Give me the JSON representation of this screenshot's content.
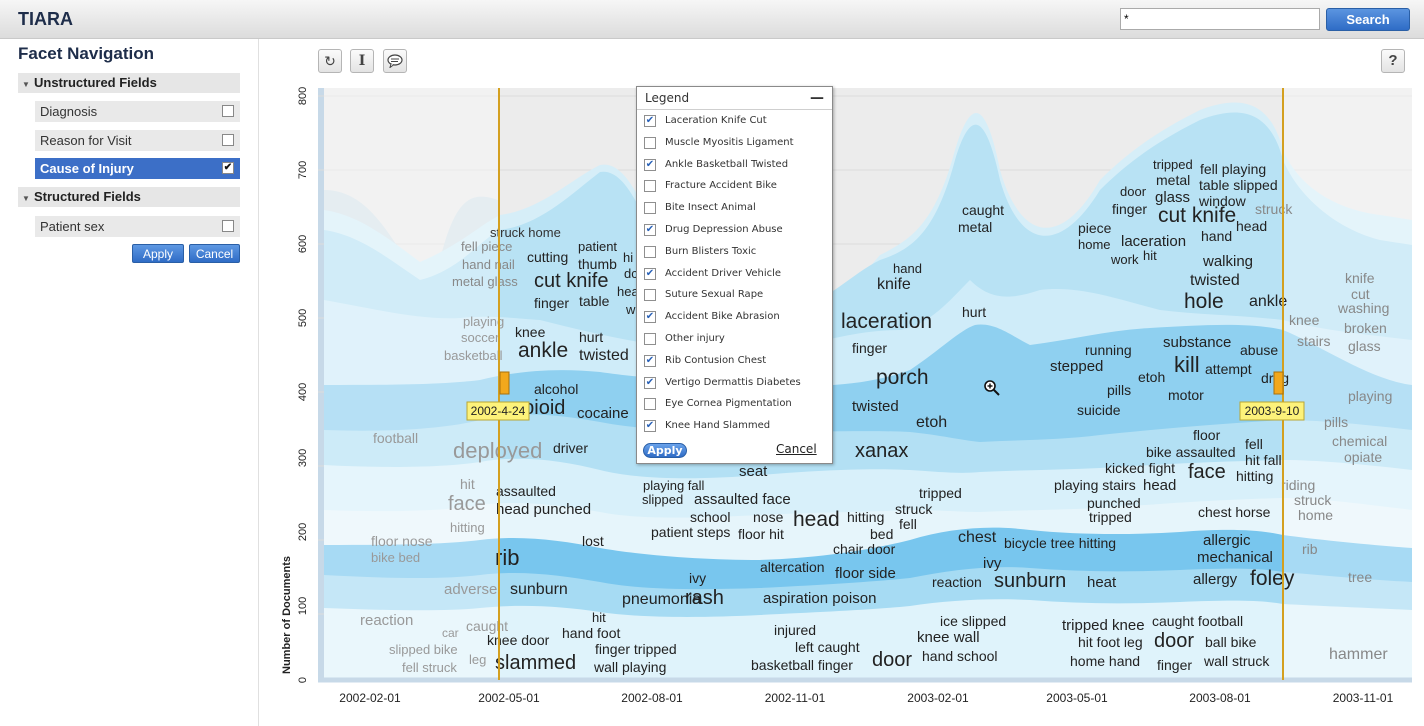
{
  "app": {
    "title": "TIARA"
  },
  "search": {
    "value": "*",
    "button": "Search"
  },
  "sidebar": {
    "title": "Facet Navigation",
    "unstructured": {
      "label": "Unstructured Fields",
      "items": [
        {
          "label": "Diagnosis",
          "checked": false
        },
        {
          "label": "Reason for Visit",
          "checked": false
        },
        {
          "label": "Cause of Injury",
          "checked": true
        }
      ]
    },
    "structured": {
      "label": "Structured Fields",
      "items": [
        {
          "label": "Patient sex",
          "checked": false
        }
      ]
    },
    "apply": "Apply",
    "cancel": "Cancel"
  },
  "toolbar": {
    "refresh_icon": "refresh-icon",
    "text_cursor_icon": "text-cursor-icon",
    "comment_icon": "comment-icon",
    "help": "?"
  },
  "legend": {
    "title": "Legend",
    "minimize": "—",
    "items": [
      {
        "label": "Laceration Knife Cut",
        "checked": true
      },
      {
        "label": "Muscle Myositis Ligament",
        "checked": false
      },
      {
        "label": "Ankle Basketball Twisted",
        "checked": true
      },
      {
        "label": "Fracture Accident Bike",
        "checked": false
      },
      {
        "label": "Bite Insect Animal",
        "checked": false
      },
      {
        "label": "Drug Depression Abuse",
        "checked": true
      },
      {
        "label": "Burn Blisters Toxic",
        "checked": false
      },
      {
        "label": "Accident Driver Vehicle",
        "checked": true
      },
      {
        "label": "Suture Sexual Rape",
        "checked": false
      },
      {
        "label": "Accident Bike Abrasion",
        "checked": true
      },
      {
        "label": "Other injury",
        "checked": false
      },
      {
        "label": "Rib Contusion Chest",
        "checked": true
      },
      {
        "label": "Vertigo Dermattis Diabetes",
        "checked": true
      },
      {
        "label": "Eye Cornea Pigmentation",
        "checked": false
      },
      {
        "label": "Knee Hand Slammed",
        "checked": true
      }
    ],
    "apply": "Apply",
    "cancel": "Cancel"
  },
  "chart_data": {
    "type": "area",
    "subtype": "stacked streamgraph with keyword labels",
    "ylabel": "Number of Documents",
    "xlabel": "",
    "ylim": [
      0,
      800
    ],
    "yticks": [
      0,
      100,
      200,
      300,
      400,
      500,
      600,
      700,
      800
    ],
    "xticks": [
      "2002-02-01",
      "2002-05-01",
      "2002-08-01",
      "2002-11-01",
      "2003-02-01",
      "2003-05-01",
      "2003-08-01",
      "2003-11-01"
    ],
    "range_markers": [
      {
        "label": "2002-4-24"
      },
      {
        "label": "2003-9-10"
      }
    ],
    "keywords": [
      "struck home",
      "fell piece",
      "hand nail",
      "cutting",
      "metal glass",
      "cut knife",
      "patient",
      "thumb",
      "finger",
      "table",
      "hi",
      "dc",
      "hea",
      "w",
      "playing",
      "soccer",
      "basketball",
      "knee",
      "ankle",
      "hurt",
      "twisted",
      "alcohol",
      "opioid",
      "cocaine",
      "football",
      "deployed",
      "driver",
      "hit",
      "face",
      "assaulted",
      "head punched",
      "hitting",
      "floor nose",
      "bike bed",
      "rib",
      "lost",
      "adverse",
      "sunburn",
      "reaction",
      "car",
      "caught",
      "knee door",
      "slipped bike",
      "leg",
      "fell struck",
      "slammed",
      "hit",
      "hand foot",
      "finger tripped",
      "wall playing",
      "pneumonia",
      "rash",
      "aspiration poison",
      "ivy",
      "seat",
      "playing fall",
      "slipped",
      "assaulted face",
      "school",
      "nose",
      "head",
      "hitting",
      "bed",
      "patient steps",
      "floor hit",
      "chair door",
      "altercation",
      "floor side",
      "injured",
      "left caught",
      "basketball finger",
      "door",
      "hand",
      "knife",
      "laceration",
      "finger",
      "porch",
      "twisted",
      "etoh",
      "xanax",
      "hurt",
      "caught",
      "metal",
      "tripped",
      "struck",
      "fell",
      "chest",
      "bicycle tree hitting",
      "ivy",
      "reaction",
      "sunburn",
      "heat",
      "ice slipped",
      "knee wall",
      "hand school",
      "running",
      "stepped",
      "pills",
      "suicide",
      "etoh",
      "motor",
      "kill",
      "attempt",
      "substance",
      "abuse",
      "drug",
      "door",
      "piece",
      "finger",
      "home",
      "work",
      "hit",
      "laceration",
      "hand",
      "cut knife",
      "glass",
      "metal",
      "tripped",
      "fell playing",
      "table slipped",
      "window",
      "struck",
      "head",
      "walking",
      "twisted",
      "hole",
      "ankle",
      "floor",
      "bike assaulted",
      "fell",
      "hit fall",
      "kicked fight",
      "face",
      "hitting",
      "playing stairs",
      "head",
      "punched",
      "tripped",
      "chest horse",
      "allergic",
      "mechanical",
      "allergy",
      "foley",
      "tripped knee",
      "caught football",
      "hit foot leg",
      "door",
      "ball bike",
      "home hand",
      "finger",
      "wall struck",
      "knife",
      "cut",
      "washing",
      "broken",
      "glass",
      "knee",
      "stairs",
      "playing",
      "pills",
      "chemical",
      "opiate",
      "riding",
      "struck",
      "home",
      "rib",
      "tree",
      "hammer"
    ]
  }
}
